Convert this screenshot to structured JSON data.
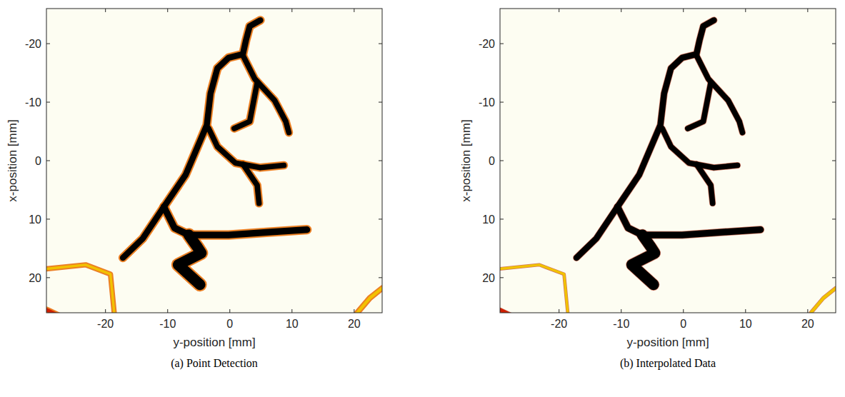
{
  "chart_data": [
    {
      "type": "image",
      "title": "(a) Point Detection",
      "x_label": "y-position [mm]",
      "y_label": "x-position [mm]",
      "xlim": [
        -29.5,
        24.5
      ],
      "ylim": [
        26,
        -26
      ],
      "xticks": [
        -20,
        -10,
        0,
        10,
        20
      ],
      "yticks": [
        20,
        10,
        0,
        -10,
        -20
      ],
      "vessels": [
        {
          "x": [
            -17.2,
            -14,
            -10.6,
            -7.1,
            -3.7,
            -3.1,
            -2,
            -0.2,
            2.1,
            2.6,
            3.2,
            4.9
          ],
          "y": [
            16.6,
            13.3,
            7.9,
            2.4,
            -6.1,
            -11.5,
            -15.8,
            -17.6,
            -18.2,
            -20.6,
            -23,
            -24
          ],
          "width": 1.0,
          "color": "#000000"
        },
        {
          "x": [
            2.1,
            4,
            7.2,
            9,
            9.5
          ],
          "y": [
            -18,
            -14,
            -10.3,
            -6.7,
            -4.8
          ],
          "width": 0.9,
          "color": "#000000"
        },
        {
          "x": [
            4.4,
            3.2,
            0.7
          ],
          "y": [
            -13.3,
            -6.7,
            -5.5
          ],
          "width": 0.9,
          "color": "#000000"
        },
        {
          "x": [
            -3.4,
            -2,
            0.9,
            4.9,
            8.7
          ],
          "y": [
            -5.5,
            -2.4,
            0.4,
            1.2,
            0.8
          ],
          "width": 0.9,
          "color": "#000000"
        },
        {
          "x": [
            2.1,
            4.4,
            4.7
          ],
          "y": [
            0.6,
            4.2,
            7.3
          ],
          "width": 0.9,
          "color": "#000000"
        },
        {
          "x": [
            -10.6,
            -8.9,
            -6.6,
            -0.2,
            6.7,
            12.4
          ],
          "y": [
            7.9,
            11.5,
            12.7,
            12.7,
            12.2,
            11.8
          ],
          "width": 1.1,
          "color": "#000000"
        },
        {
          "x": [
            -6.6,
            -5.2,
            -4.6,
            -8.3,
            -4.8
          ],
          "y": [
            12.7,
            14.8,
            15.8,
            17.8,
            21.2
          ],
          "width": 1.8,
          "color": "#000000"
        },
        {
          "x": [
            -29.5,
            -23.2,
            -19.2,
            -18.6
          ],
          "y": [
            18.5,
            17.8,
            19.4,
            26
          ],
          "width": 0.4,
          "color": "#f2c200"
        },
        {
          "x": [
            20.5,
            22.5,
            24.5
          ],
          "y": [
            26,
            23.5,
            21.8
          ],
          "width": 0.5,
          "color": "#f2c200"
        },
        {
          "x": [
            -29.5,
            -27.5
          ],
          "y": [
            25.5,
            26.5
          ],
          "width": 0.6,
          "color": "#d02000"
        }
      ]
    },
    {
      "type": "image",
      "title": "(b) Interpolated Data",
      "x_label": "y-position [mm]",
      "y_label": "x-position [mm]",
      "xlim": [
        -29.5,
        24.5
      ],
      "ylim": [
        26,
        -26
      ],
      "xticks": [
        -20,
        -10,
        0,
        10,
        20
      ],
      "yticks": [
        20,
        10,
        0,
        -10,
        -20
      ],
      "vessels": [
        {
          "x": [
            -17.2,
            -14,
            -10.6,
            -7.1,
            -3.7,
            -3.1,
            -2,
            -0.2,
            2.1,
            2.6,
            3.2,
            4.9
          ],
          "y": [
            16.6,
            13.3,
            7.9,
            2.4,
            -6.1,
            -11.5,
            -15.8,
            -17.6,
            -18.2,
            -20.6,
            -23,
            -24
          ],
          "width": 1.0,
          "color": "#000000"
        },
        {
          "x": [
            2.1,
            4,
            7.2,
            9,
            9.5
          ],
          "y": [
            -18,
            -14,
            -10.3,
            -6.7,
            -4.8
          ],
          "width": 0.9,
          "color": "#000000"
        },
        {
          "x": [
            4.4,
            3.2,
            0.7
          ],
          "y": [
            -13.3,
            -6.7,
            -5.5
          ],
          "width": 0.9,
          "color": "#000000"
        },
        {
          "x": [
            -3.4,
            -2,
            0.9,
            4.9,
            8.7
          ],
          "y": [
            -5.5,
            -2.4,
            0.4,
            1.2,
            0.8
          ],
          "width": 0.9,
          "color": "#000000"
        },
        {
          "x": [
            2.1,
            4.4,
            4.7
          ],
          "y": [
            0.6,
            4.2,
            7.3
          ],
          "width": 0.9,
          "color": "#000000"
        },
        {
          "x": [
            -10.6,
            -8.9,
            -6.6,
            -0.2,
            6.7,
            12.4
          ],
          "y": [
            7.9,
            11.5,
            12.7,
            12.7,
            12.2,
            11.8
          ],
          "width": 1.1,
          "color": "#000000"
        },
        {
          "x": [
            -6.6,
            -5.2,
            -4.6,
            -8.3,
            -4.8
          ],
          "y": [
            12.7,
            14.8,
            15.8,
            17.8,
            21.2
          ],
          "width": 1.8,
          "color": "#000000"
        },
        {
          "x": [
            -29.5,
            -23.2,
            -19.2,
            -18.6
          ],
          "y": [
            18.5,
            17.8,
            19.4,
            26
          ],
          "width": 0.4,
          "color": "#f2c200"
        },
        {
          "x": [
            20.5,
            22.5,
            24.5
          ],
          "y": [
            26,
            23.5,
            21.8
          ],
          "width": 0.5,
          "color": "#f2c200"
        },
        {
          "x": [
            -29.5,
            -27.5
          ],
          "y": [
            25.5,
            26.5
          ],
          "width": 0.6,
          "color": "#d02000"
        }
      ]
    }
  ]
}
